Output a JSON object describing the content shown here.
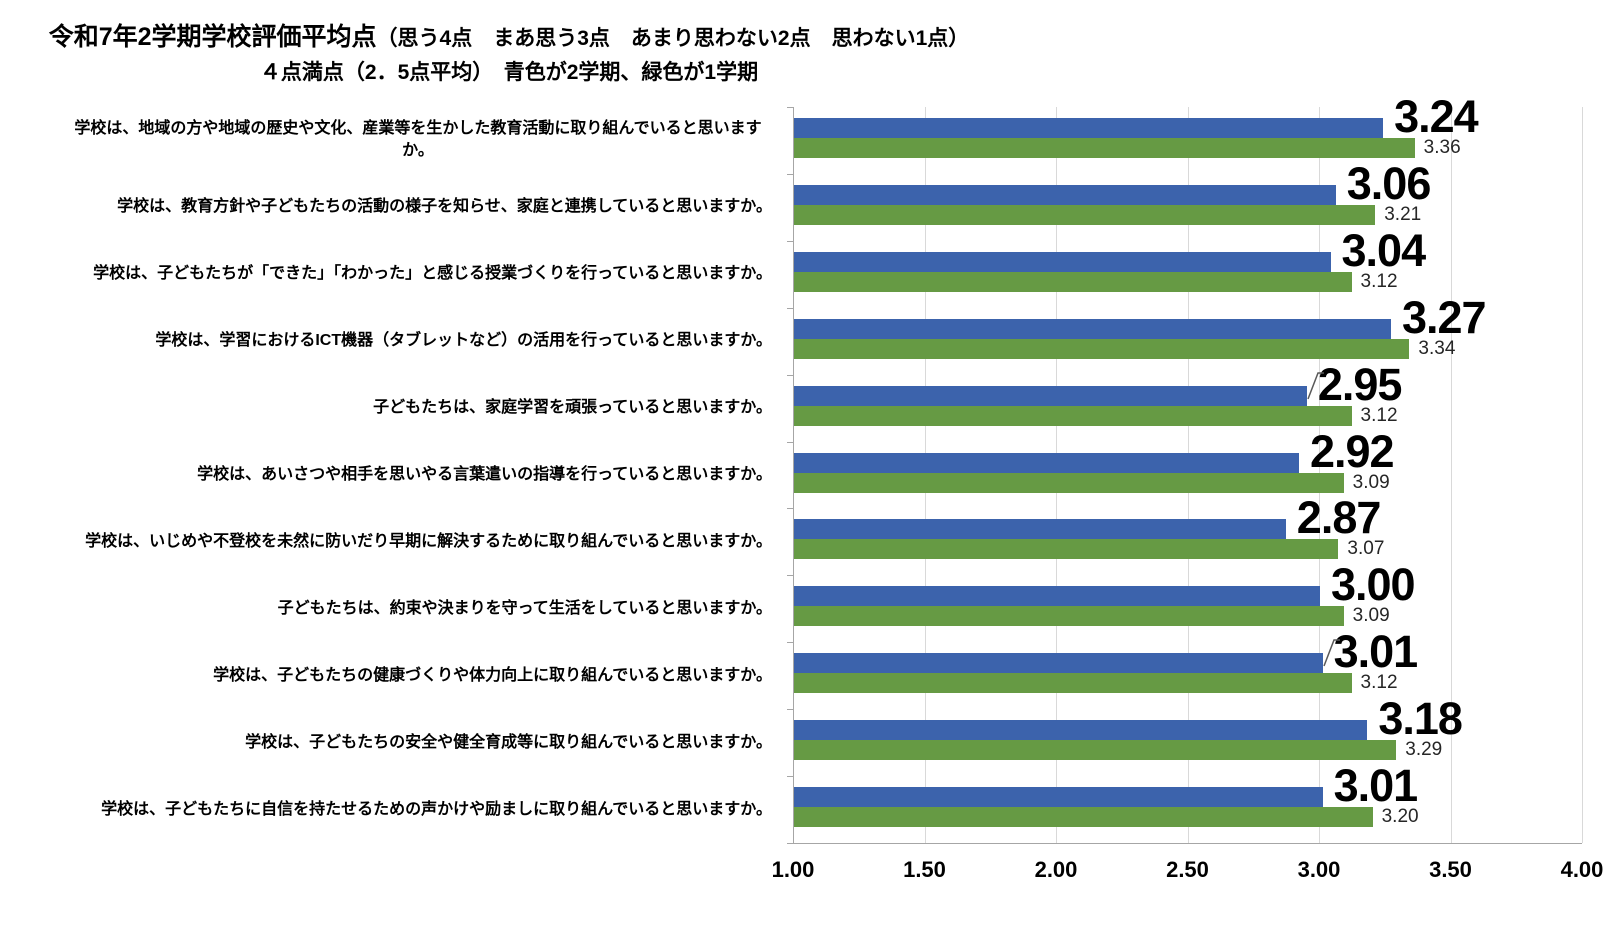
{
  "chart_data": {
    "type": "bar",
    "orientation": "horizontal",
    "title_main": "令和7年2学期学校評価平均点",
    "title_paren": "（思う4点　まあ思う3点　あまり思わない2点　思わない1点）",
    "subtitle": "４点満点（2．5点平均）　青色が2学期、緑色が1学期",
    "categories": [
      "学校は、地域の方や地域の歴史や文化、産業等を生かした教育活動に取り組んでいると思いますか。",
      "学校は、教育方針や子どもたちの活動の様子を知らせ、家庭と連携していると思いますか。",
      "学校は、子どもたちが「できた」「わかった」と感じる授業づくりを行っていると思いますか。",
      "学校は、学習におけるICT機器（タブレットなど）の活用を行っていると思いますか。",
      "子どもたちは、家庭学習を頑張っていると思いますか。",
      "学校は、あいさつや相手を思いやる言葉遣いの指導を行っていると思いますか。",
      "学校は、いじめや不登校を未然に防いだり早期に解決するために取り組んでいると思いますか。",
      "子どもたちは、約束や決まりを守って生活をしていると思いますか。",
      "学校は、子どもたちの健康づくりや体力向上に取り組んでいると思いますか。",
      "学校は、子どもたちの安全や健全育成等に取り組んでいると思いますか。",
      "学校は、子どもたちに自信を持たせるための声かけや励ましに取り組んでいると思いますか。"
    ],
    "series": [
      {
        "name": "2学期",
        "color": "#3C63AC",
        "values": [
          3.24,
          3.06,
          3.04,
          3.27,
          2.95,
          2.92,
          2.87,
          3.0,
          3.01,
          3.18,
          3.01
        ]
      },
      {
        "name": "1学期",
        "color": "#669A44",
        "values": [
          3.36,
          3.21,
          3.12,
          3.34,
          3.12,
          3.09,
          3.07,
          3.09,
          3.12,
          3.29,
          3.2
        ]
      }
    ],
    "xlim": [
      1.0,
      4.0
    ],
    "x_tick_labels": [
      "1.00",
      "1.50",
      "2.00",
      "2.50",
      "3.00",
      "3.50",
      "4.00"
    ],
    "grid": true,
    "legend_position": "none",
    "callout_indices": [
      4,
      8
    ],
    "colors": {
      "gridline": "#D9D9D9",
      "axis": "#A6A6A6",
      "leader": "#595959"
    }
  }
}
